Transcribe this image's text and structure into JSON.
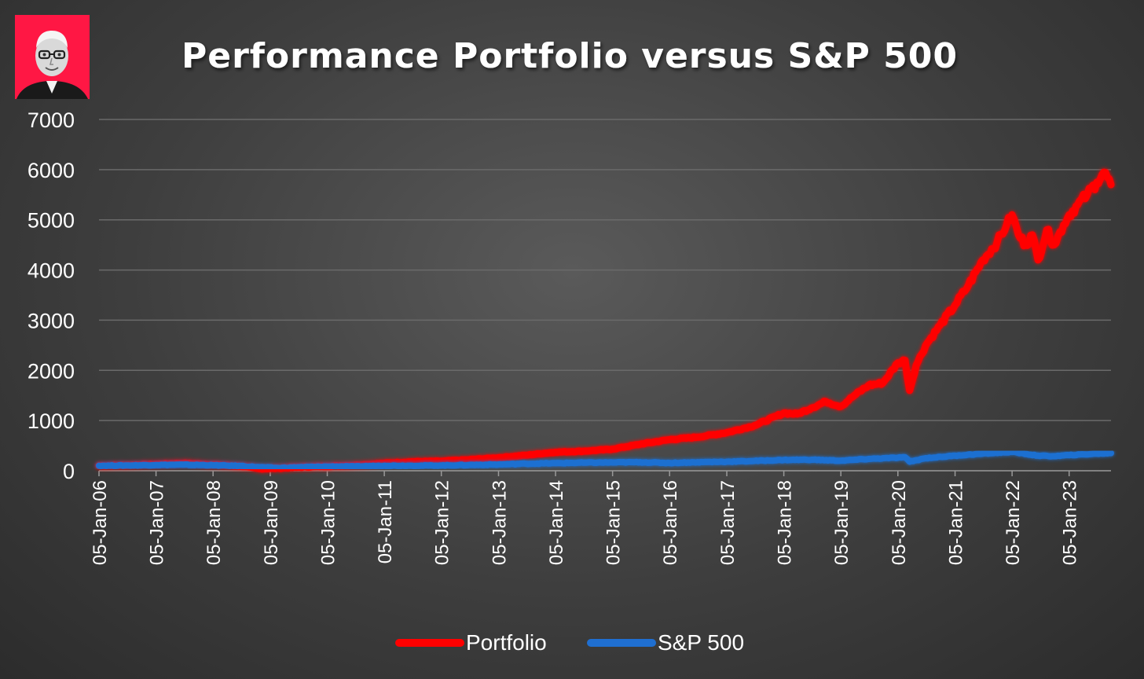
{
  "chart_data": {
    "type": "line",
    "title": "Performance Portfolio versus S&P 500",
    "xlabel": "",
    "ylabel": "",
    "ylim": [
      0,
      7000
    ],
    "yticks": [
      "0",
      "1000",
      "2000",
      "3000",
      "4000",
      "5000",
      "6000",
      "7000"
    ],
    "xticks": [
      "05-Jan-06",
      "05-Jan-07",
      "05-Jan-08",
      "05-Jan-09",
      "05-Jan-10",
      "05-Jan-11",
      "05-Jan-12",
      "05-Jan-13",
      "05-Jan-14",
      "05-Jan-15",
      "05-Jan-16",
      "05-Jan-17",
      "05-Jan-18",
      "05-Jan-19",
      "05-Jan-20",
      "05-Jan-21",
      "05-Jan-22",
      "05-Jan-23"
    ],
    "xlim": [
      "2006-01-05",
      "2023-09-30"
    ],
    "grid": true,
    "legend_position": "bottom",
    "series": [
      {
        "name": "Portfolio",
        "color": "#ff0000",
        "points": [
          [
            "2006-01-05",
            100
          ],
          [
            "2006-07-01",
            110
          ],
          [
            "2007-01-05",
            130
          ],
          [
            "2007-07-01",
            150
          ],
          [
            "2008-01-05",
            120
          ],
          [
            "2008-07-01",
            90
          ],
          [
            "2008-11-01",
            40
          ],
          [
            "2009-03-01",
            50
          ],
          [
            "2009-07-01",
            70
          ],
          [
            "2010-01-05",
            90
          ],
          [
            "2010-07-01",
            110
          ],
          [
            "2011-01-05",
            150
          ],
          [
            "2011-07-01",
            180
          ],
          [
            "2012-01-05",
            190
          ],
          [
            "2012-07-01",
            220
          ],
          [
            "2013-01-05",
            260
          ],
          [
            "2013-07-01",
            310
          ],
          [
            "2014-01-05",
            370
          ],
          [
            "2014-07-01",
            390
          ],
          [
            "2015-01-05",
            430
          ],
          [
            "2015-07-01",
            530
          ],
          [
            "2016-01-05",
            620
          ],
          [
            "2016-07-01",
            670
          ],
          [
            "2017-01-05",
            760
          ],
          [
            "2017-07-01",
            900
          ],
          [
            "2018-01-05",
            1150
          ],
          [
            "2018-04-01",
            1130
          ],
          [
            "2018-07-01",
            1250
          ],
          [
            "2018-10-01",
            1380
          ],
          [
            "2019-01-05",
            1280
          ],
          [
            "2019-04-01",
            1500
          ],
          [
            "2019-07-01",
            1700
          ],
          [
            "2019-10-01",
            1750
          ],
          [
            "2020-01-05",
            2150
          ],
          [
            "2020-02-20",
            2200
          ],
          [
            "2020-03-20",
            1600
          ],
          [
            "2020-05-01",
            2100
          ],
          [
            "2020-07-01",
            2500
          ],
          [
            "2020-10-01",
            2900
          ],
          [
            "2021-01-05",
            3300
          ],
          [
            "2021-04-01",
            3700
          ],
          [
            "2021-07-01",
            4200
          ],
          [
            "2021-10-01",
            4550
          ],
          [
            "2021-12-01",
            4900
          ],
          [
            "2022-01-05",
            5100
          ],
          [
            "2022-02-15",
            4700
          ],
          [
            "2022-04-01",
            4500
          ],
          [
            "2022-05-15",
            4700
          ],
          [
            "2022-06-20",
            4200
          ],
          [
            "2022-08-15",
            4800
          ],
          [
            "2022-10-01",
            4500
          ],
          [
            "2022-12-01",
            4900
          ],
          [
            "2023-01-05",
            5100
          ],
          [
            "2023-03-01",
            5300
          ],
          [
            "2023-05-01",
            5500
          ],
          [
            "2023-07-01",
            5750
          ],
          [
            "2023-08-15",
            5950
          ],
          [
            "2023-09-30",
            5700
          ]
        ]
      },
      {
        "name": "S&P 500",
        "color": "#1f6fd1",
        "points": [
          [
            "2006-01-05",
            100
          ],
          [
            "2006-07-01",
            105
          ],
          [
            "2007-01-05",
            115
          ],
          [
            "2007-07-01",
            120
          ],
          [
            "2008-01-05",
            110
          ],
          [
            "2008-07-01",
            95
          ],
          [
            "2008-11-01",
            70
          ],
          [
            "2009-03-01",
            55
          ],
          [
            "2009-07-01",
            70
          ],
          [
            "2010-01-05",
            85
          ],
          [
            "2010-07-01",
            85
          ],
          [
            "2011-01-05",
            100
          ],
          [
            "2011-07-01",
            100
          ],
          [
            "2012-01-05",
            105
          ],
          [
            "2012-07-01",
            115
          ],
          [
            "2013-01-05",
            125
          ],
          [
            "2013-07-01",
            140
          ],
          [
            "2014-01-05",
            150
          ],
          [
            "2014-07-01",
            160
          ],
          [
            "2015-01-05",
            165
          ],
          [
            "2015-07-01",
            170
          ],
          [
            "2016-01-05",
            155
          ],
          [
            "2016-07-01",
            170
          ],
          [
            "2017-01-05",
            180
          ],
          [
            "2017-07-01",
            195
          ],
          [
            "2018-01-05",
            215
          ],
          [
            "2018-07-01",
            220
          ],
          [
            "2019-01-05",
            200
          ],
          [
            "2019-07-01",
            235
          ],
          [
            "2020-01-05",
            260
          ],
          [
            "2020-02-20",
            270
          ],
          [
            "2020-03-20",
            180
          ],
          [
            "2020-07-01",
            250
          ],
          [
            "2021-01-05",
            300
          ],
          [
            "2021-07-01",
            340
          ],
          [
            "2022-01-05",
            375
          ],
          [
            "2022-06-20",
            300
          ],
          [
            "2022-10-01",
            290
          ],
          [
            "2023-01-05",
            310
          ],
          [
            "2023-07-01",
            340
          ],
          [
            "2023-09-30",
            350
          ]
        ]
      }
    ]
  },
  "logo": {
    "name": "portrait-logo",
    "background": "#ff1744"
  }
}
